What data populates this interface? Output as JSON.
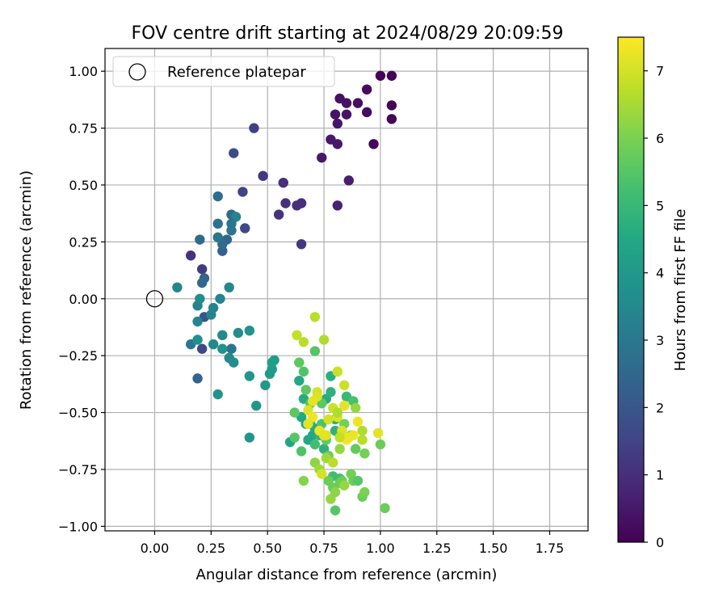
{
  "chart_data": {
    "type": "scatter",
    "title": "FOV centre drift starting at 2024/08/29 20:09:59",
    "xlabel": "Angular distance from reference (arcmin)",
    "ylabel": "Rotation from reference (arcmin)",
    "xlim": [
      -0.22,
      1.92
    ],
    "ylim": [
      -1.02,
      1.1
    ],
    "xticks": [
      "0.00",
      "0.25",
      "0.50",
      "0.75",
      "1.00",
      "1.25",
      "1.50",
      "1.75"
    ],
    "yticks": [
      "1.00",
      "0.75",
      "0.50",
      "0.25",
      "0.00",
      "−0.25",
      "−0.50",
      "−0.75",
      "−1.00"
    ],
    "grid": true,
    "legend": {
      "placement": "top-left",
      "entries": [
        "Reference platepar"
      ]
    },
    "reference_point": {
      "x": 0.0,
      "y": 0.0
    },
    "colorbar": {
      "label": "Hours from first FF file",
      "range": [
        0,
        7.5
      ],
      "colormap": "viridis",
      "ticks": [
        "0",
        "1",
        "2",
        "3",
        "4",
        "5",
        "6",
        "7"
      ]
    },
    "series": [
      {
        "points": [
          [
            1.0,
            0.98,
            0.05
          ],
          [
            1.05,
            0.98,
            0.05
          ],
          [
            1.05,
            0.85,
            0.1
          ],
          [
            1.05,
            0.79,
            0.1
          ],
          [
            0.97,
            0.68,
            0.15
          ],
          [
            0.94,
            0.92,
            0.25
          ],
          [
            0.94,
            0.82,
            0.25
          ],
          [
            0.9,
            0.86,
            0.3
          ],
          [
            0.82,
            0.88,
            0.35
          ],
          [
            0.85,
            0.86,
            0.35
          ],
          [
            0.85,
            0.81,
            0.4
          ],
          [
            0.8,
            0.81,
            0.4
          ],
          [
            0.81,
            0.77,
            0.45
          ],
          [
            0.78,
            0.7,
            0.5
          ],
          [
            0.81,
            0.68,
            0.5
          ],
          [
            0.74,
            0.62,
            0.5
          ],
          [
            0.86,
            0.52,
            0.6
          ],
          [
            0.81,
            0.41,
            0.7
          ],
          [
            0.65,
            0.42,
            1.0
          ],
          [
            0.63,
            0.41,
            1.0
          ],
          [
            0.57,
            0.51,
            1.0
          ],
          [
            0.58,
            0.42,
            1.05
          ],
          [
            0.55,
            0.37,
            1.1
          ],
          [
            0.65,
            0.24,
            1.2
          ],
          [
            0.48,
            0.54,
            1.2
          ],
          [
            0.44,
            0.75,
            1.4
          ],
          [
            0.39,
            0.47,
            1.5
          ],
          [
            0.4,
            0.31,
            1.6
          ],
          [
            0.35,
            0.64,
            1.7
          ],
          [
            0.16,
            0.19,
            1.1
          ],
          [
            0.21,
            0.13,
            1.3
          ],
          [
            0.22,
            0.09,
            2.3
          ],
          [
            0.21,
            0.07,
            2.5
          ],
          [
            0.22,
            -0.08,
            1.9
          ],
          [
            0.21,
            -0.22,
            1.6
          ],
          [
            0.2,
            0.26,
            2.6
          ],
          [
            0.28,
            0.45,
            2.7
          ],
          [
            0.28,
            0.33,
            2.8
          ],
          [
            0.3,
            0.21,
            2.3
          ],
          [
            0.32,
            0.26,
            2.5
          ],
          [
            0.3,
            0.24,
            2.6
          ],
          [
            0.34,
            0.37,
            2.6
          ],
          [
            0.36,
            0.36,
            3.3
          ],
          [
            0.34,
            0.33,
            2.9
          ],
          [
            0.34,
            0.3,
            2.9
          ],
          [
            0.28,
            0.27,
            2.9
          ],
          [
            0.1,
            0.05,
            3.4
          ],
          [
            0.19,
            -0.03,
            3.3
          ],
          [
            0.2,
            0.0,
            3.6
          ],
          [
            0.19,
            -0.1,
            3.4
          ],
          [
            0.26,
            -0.04,
            3.4
          ],
          [
            0.25,
            -0.07,
            3.4
          ],
          [
            0.29,
            0.0,
            3.4
          ],
          [
            0.33,
            0.05,
            3.5
          ],
          [
            0.19,
            -0.35,
            2.4
          ],
          [
            0.16,
            -0.2,
            3.0
          ],
          [
            0.19,
            -0.18,
            3.7
          ],
          [
            0.26,
            -0.2,
            3.5
          ],
          [
            0.3,
            -0.16,
            3.5
          ],
          [
            0.34,
            -0.22,
            2.9
          ],
          [
            0.33,
            -0.26,
            3.5
          ],
          [
            0.35,
            -0.28,
            3.6
          ],
          [
            0.37,
            -0.15,
            3.6
          ],
          [
            0.42,
            -0.14,
            3.8
          ],
          [
            0.3,
            -0.22,
            3.8
          ],
          [
            0.28,
            -0.42,
            3.8
          ],
          [
            0.42,
            -0.34,
            3.9
          ],
          [
            0.45,
            -0.47,
            3.9
          ],
          [
            0.49,
            -0.38,
            4.0
          ],
          [
            0.51,
            -0.33,
            4.0
          ],
          [
            0.52,
            -0.31,
            4.1
          ],
          [
            0.53,
            -0.27,
            4.1
          ],
          [
            0.52,
            -0.28,
            4.2
          ],
          [
            0.42,
            -0.61,
            3.9
          ],
          [
            0.6,
            -0.63,
            4.4
          ],
          [
            0.64,
            -0.36,
            4.5
          ],
          [
            0.66,
            -0.44,
            4.6
          ],
          [
            0.65,
            -0.52,
            4.5
          ],
          [
            0.67,
            -0.55,
            4.4
          ],
          [
            0.69,
            -0.55,
            4.8
          ],
          [
            0.68,
            -0.62,
            4.5
          ],
          [
            0.7,
            -0.6,
            4.5
          ],
          [
            0.71,
            -0.57,
            4.6
          ],
          [
            0.73,
            -0.6,
            4.8
          ],
          [
            0.75,
            -0.66,
            4.8
          ],
          [
            0.76,
            -0.44,
            4.6
          ],
          [
            0.78,
            -0.41,
            4.8
          ],
          [
            0.78,
            -0.34,
            4.7
          ],
          [
            0.8,
            -0.53,
            4.7
          ],
          [
            0.8,
            -0.58,
            4.8
          ],
          [
            0.82,
            -0.6,
            5.1
          ],
          [
            0.85,
            -0.43,
            5.0
          ],
          [
            0.88,
            -0.45,
            5.3
          ],
          [
            0.79,
            -0.78,
            5.2
          ],
          [
            0.82,
            -0.79,
            5.2
          ],
          [
            0.71,
            -0.64,
            5.2
          ],
          [
            0.65,
            -0.67,
            5.4
          ],
          [
            0.62,
            -0.61,
            5.5
          ],
          [
            0.62,
            -0.5,
            5.6
          ],
          [
            0.64,
            -0.28,
            5.6
          ],
          [
            0.66,
            -0.32,
            5.4
          ],
          [
            0.67,
            -0.4,
            5.6
          ],
          [
            0.69,
            -0.46,
            5.4
          ],
          [
            0.71,
            -0.23,
            5.5
          ],
          [
            0.74,
            -0.46,
            5.6
          ],
          [
            0.74,
            -0.55,
            5.4
          ],
          [
            0.76,
            -0.62,
            5.7
          ],
          [
            0.77,
            -0.69,
            5.8
          ],
          [
            0.77,
            -0.8,
            5.8
          ],
          [
            0.79,
            -0.83,
            5.8
          ],
          [
            0.8,
            -0.93,
            5.5
          ],
          [
            0.82,
            -0.81,
            5.8
          ],
          [
            0.83,
            -0.8,
            5.8
          ],
          [
            0.84,
            -0.55,
            5.9
          ],
          [
            0.87,
            -0.77,
            5.9
          ],
          [
            0.88,
            -0.8,
            5.8
          ],
          [
            0.89,
            -0.66,
            5.7
          ],
          [
            0.9,
            -0.8,
            5.5
          ],
          [
            0.92,
            -0.87,
            5.8
          ],
          [
            0.93,
            -0.85,
            6.0
          ],
          [
            0.93,
            -0.68,
            5.9
          ],
          [
            1.0,
            -0.64,
            5.8
          ],
          [
            1.02,
            -0.92,
            5.8
          ],
          [
            0.66,
            -0.8,
            6.1
          ],
          [
            0.71,
            -0.72,
            6.2
          ],
          [
            0.73,
            -0.75,
            6.4
          ],
          [
            0.76,
            -0.7,
            6.4
          ],
          [
            0.78,
            -0.88,
            6.3
          ],
          [
            0.8,
            -0.85,
            6.2
          ],
          [
            0.82,
            -0.66,
            6.3
          ],
          [
            0.84,
            -0.82,
            6.3
          ],
          [
            0.87,
            -0.6,
            6.2
          ],
          [
            0.89,
            -0.48,
            6.3
          ],
          [
            0.92,
            -0.58,
            6.6
          ],
          [
            0.71,
            -0.08,
            6.7
          ],
          [
            0.75,
            -0.18,
            6.6
          ],
          [
            0.66,
            -0.19,
            6.7
          ],
          [
            0.63,
            -0.16,
            6.8
          ],
          [
            0.79,
            -0.72,
            6.7
          ],
          [
            0.76,
            -0.6,
            7.1
          ],
          [
            0.84,
            -0.38,
            6.9
          ],
          [
            0.81,
            -0.32,
            6.9
          ],
          [
            0.72,
            -0.41,
            7.0
          ],
          [
            0.72,
            -0.43,
            7.1
          ],
          [
            0.7,
            -0.45,
            7.2
          ],
          [
            0.68,
            -0.49,
            7.1
          ],
          [
            0.68,
            -0.55,
            7.2
          ],
          [
            0.7,
            -0.52,
            7.3
          ],
          [
            0.73,
            -0.58,
            7.3
          ],
          [
            0.75,
            -0.6,
            7.2
          ],
          [
            0.77,
            -0.53,
            7.0
          ],
          [
            0.79,
            -0.48,
            6.9
          ],
          [
            0.81,
            -0.52,
            7.1
          ],
          [
            0.83,
            -0.58,
            7.1
          ],
          [
            0.84,
            -0.47,
            7.2
          ],
          [
            0.85,
            -0.62,
            7.4
          ],
          [
            0.86,
            -0.61,
            7.3
          ],
          [
            0.88,
            -0.6,
            7.3
          ],
          [
            0.9,
            -0.54,
            7.3
          ],
          [
            0.92,
            -0.62,
            6.7
          ],
          [
            0.99,
            -0.59,
            7.2
          ],
          [
            0.74,
            -0.77,
            7.0
          ],
          [
            0.81,
            -0.5,
            6.6
          ],
          [
            0.82,
            -0.61,
            6.8
          ]
        ]
      }
    ]
  }
}
